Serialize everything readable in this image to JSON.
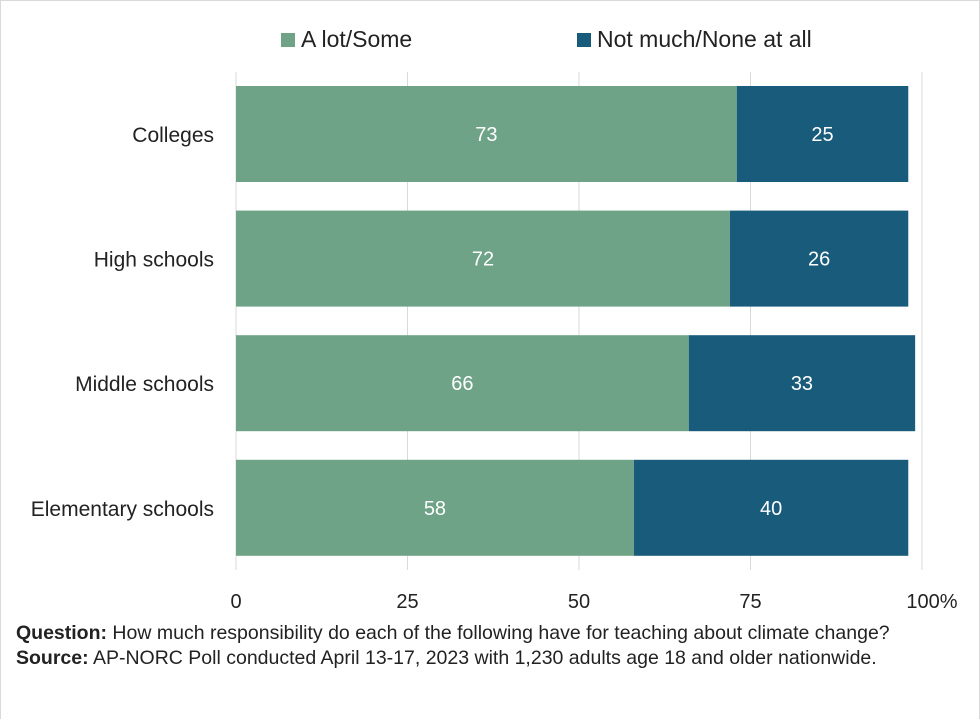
{
  "chart_data": {
    "type": "bar",
    "orientation": "horizontal",
    "stacked": true,
    "categories": [
      "Colleges",
      "High schools",
      "Middle schools",
      "Elementary schools"
    ],
    "series": [
      {
        "name": "A lot/Some",
        "values": [
          73,
          72,
          66,
          58
        ],
        "color": "#6fa387"
      },
      {
        "name": "Not much/None at all",
        "values": [
          25,
          26,
          33,
          40
        ],
        "color": "#185b7b"
      }
    ],
    "xlim": [
      0,
      100
    ],
    "xticks": [
      0,
      25,
      50,
      75,
      100
    ],
    "xtick_labels": [
      "0",
      "25",
      "50",
      "75",
      "100%"
    ],
    "grid": "vertical",
    "legend_position": "top",
    "data_labels": true
  },
  "notes": {
    "question_label": "Question:",
    "question_text": "How much responsibility do each of the following have for teaching about climate change?",
    "source_label": "Source:",
    "source_text": "AP-NORC Poll conducted April 13-17, 2023 with 1,230 adults age 18 and older nationwide."
  }
}
